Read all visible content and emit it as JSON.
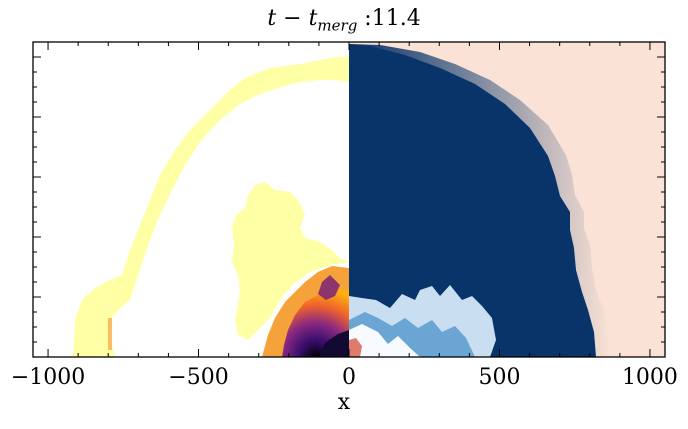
{
  "chart_data": {
    "type": "heatmap",
    "title": {
      "var1": "t",
      "op": " − ",
      "var2": "t",
      "sub": "merg",
      "sep": " :",
      "value": "11.4"
    },
    "xlabel": "x",
    "ylabel": "",
    "xlim": [
      -1050,
      1050
    ],
    "x_ticks": [
      {
        "value": -1000,
        "label": "−1000"
      },
      {
        "value": -500,
        "label": "−500"
      },
      {
        "value": 0,
        "label": "0"
      },
      {
        "value": 500,
        "label": "500"
      },
      {
        "value": 1000,
        "label": "1000"
      }
    ],
    "y_tick_labels": [],
    "panels": [
      {
        "name": "left-half",
        "xrange": [
          -1050,
          0
        ],
        "colormap": "inferno-reversed",
        "colors": {
          "low": "#ffffa5",
          "mid": "#f08c2b",
          "high": "#5c1f6b",
          "peak": "#000004"
        }
      },
      {
        "name": "right-half",
        "xrange": [
          0,
          1050
        ],
        "colormap": "blue-diverging",
        "colors": {
          "background": "#fae2d6",
          "deep": "#08346a",
          "edge": "#cfe1f2",
          "light": "#f7fbff"
        }
      }
    ]
  }
}
